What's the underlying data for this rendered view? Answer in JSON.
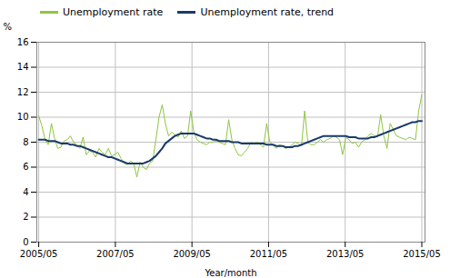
{
  "chart_data": {
    "type": "line",
    "title": "",
    "xlabel": "Year/month",
    "ylabel": "%",
    "x": [
      2005.3333,
      2005.416,
      2005.4986,
      2005.5813,
      2005.6639,
      2005.7466,
      2005.8292,
      2005.9118,
      2005.9945,
      2006.0771,
      2006.1598,
      2006.2424,
      2006.3251,
      2006.4077,
      2006.4904,
      2006.573,
      2006.6556,
      2006.7383,
      2006.8209,
      2006.9036,
      2006.9862,
      2007.0689,
      2007.1515,
      2007.2342,
      2007.3168,
      2007.3994,
      2007.4821,
      2007.5647,
      2007.6474,
      2007.73,
      2007.8127,
      2007.8953,
      2007.978,
      2008.0606,
      2008.1433,
      2008.2259,
      2008.3085,
      2008.3912,
      2008.4738,
      2008.5565,
      2008.6391,
      2008.7218,
      2008.8044,
      2008.8871,
      2008.9697,
      2009.0523,
      2009.135,
      2009.2176,
      2009.3003,
      2009.3829,
      2009.4656,
      2009.5482,
      2009.6309,
      2009.7135,
      2009.7961,
      2009.8788,
      2009.9614,
      2010.0441,
      2010.1267,
      2010.2094,
      2010.292,
      2010.3747,
      2010.4573,
      2010.5399,
      2010.6226,
      2010.7052,
      2010.7879,
      2010.8705,
      2010.9532,
      2011.0358,
      2011.1185,
      2011.2011,
      2011.2837,
      2011.3664,
      2011.449,
      2011.5317,
      2011.6143,
      2011.697,
      2011.7796,
      2011.8623,
      2011.9449,
      2012.0275,
      2012.1102,
      2012.1928,
      2012.2755,
      2012.3581,
      2012.4408,
      2012.5234,
      2012.6061,
      2012.6887,
      2012.7713,
      2012.854,
      2012.9366,
      2013.0193,
      2013.1019,
      2013.1846,
      2013.2672,
      2013.3499,
      2013.4325,
      2013.5152,
      2013.5978,
      2013.6804,
      2013.7631,
      2013.8457,
      2013.9284,
      2014.011,
      2014.0937,
      2014.1763,
      2014.259,
      2014.3416,
      2014.4242,
      2014.5069,
      2014.5895,
      2014.6722,
      2014.7548,
      2014.8375,
      2014.9201,
      2015.0028,
      2015.0854,
      2015.168,
      2015.2507,
      2015.3333
    ],
    "series": [
      {
        "name": "Unemployment rate",
        "color": "#8dc63f",
        "values": [
          10.1,
          9.3,
          8.2,
          7.8,
          9.5,
          8.3,
          7.5,
          7.6,
          8.1,
          8.2,
          8.5,
          8.0,
          7.8,
          7.5,
          8.4,
          7.0,
          7.3,
          7.2,
          6.8,
          7.5,
          7.2,
          7.0,
          7.5,
          6.9,
          7.0,
          7.2,
          6.7,
          6.3,
          6.2,
          6.5,
          6.3,
          5.2,
          6.4,
          6.0,
          5.8,
          6.3,
          6.5,
          8.2,
          10.0,
          11.0,
          9.5,
          8.5,
          8.8,
          8.6,
          8.4,
          8.9,
          8.3,
          8.5,
          10.5,
          8.8,
          8.2,
          8.0,
          7.9,
          7.8,
          8.0,
          8.0,
          8.1,
          8.0,
          7.9,
          7.8,
          9.8,
          8.2,
          7.5,
          7.0,
          6.9,
          7.2,
          7.5,
          8.0,
          7.9,
          8.0,
          7.8,
          7.6,
          9.5,
          8.0,
          7.8,
          7.5,
          7.8,
          7.7,
          7.5,
          7.6,
          7.8,
          8.0,
          7.9,
          7.7,
          10.5,
          8.0,
          7.8,
          7.8,
          8.0,
          8.2,
          8.0,
          8.2,
          8.3,
          8.5,
          8.4,
          8.2,
          7.0,
          8.4,
          8.2,
          7.9,
          8.0,
          7.6,
          8.0,
          8.2,
          8.5,
          8.7,
          8.5,
          8.4,
          10.2,
          8.5,
          7.5,
          9.5,
          9.0,
          8.5,
          8.4,
          8.3,
          8.2,
          8.4,
          8.3,
          8.2,
          10.5,
          11.8
        ]
      },
      {
        "name": "Unemployment rate, trend",
        "color": "#1a3a6b",
        "values": [
          8.2,
          8.2,
          8.2,
          8.1,
          8.1,
          8.1,
          8.0,
          7.9,
          7.9,
          7.9,
          7.8,
          7.8,
          7.7,
          7.7,
          7.6,
          7.5,
          7.4,
          7.3,
          7.2,
          7.1,
          7.0,
          6.9,
          6.8,
          6.8,
          6.7,
          6.6,
          6.5,
          6.4,
          6.3,
          6.3,
          6.3,
          6.3,
          6.3,
          6.3,
          6.4,
          6.5,
          6.7,
          6.9,
          7.2,
          7.5,
          7.9,
          8.1,
          8.3,
          8.5,
          8.6,
          8.7,
          8.7,
          8.7,
          8.7,
          8.7,
          8.6,
          8.5,
          8.4,
          8.3,
          8.3,
          8.2,
          8.2,
          8.1,
          8.1,
          8.1,
          8.1,
          8.0,
          8.0,
          8.0,
          7.9,
          7.9,
          7.9,
          7.9,
          7.9,
          7.9,
          7.9,
          7.9,
          7.8,
          7.8,
          7.8,
          7.7,
          7.7,
          7.7,
          7.6,
          7.6,
          7.6,
          7.7,
          7.7,
          7.8,
          7.9,
          8.0,
          8.1,
          8.2,
          8.3,
          8.4,
          8.5,
          8.5,
          8.5,
          8.5,
          8.5,
          8.5,
          8.5,
          8.5,
          8.4,
          8.4,
          8.4,
          8.3,
          8.3,
          8.3,
          8.3,
          8.4,
          8.4,
          8.5,
          8.6,
          8.7,
          8.8,
          8.9,
          9.0,
          9.1,
          9.2,
          9.3,
          9.4,
          9.5,
          9.6,
          9.6,
          9.7,
          9.7
        ]
      }
    ],
    "xlim": [
      2005.2833,
      2015.4167
    ],
    "xticks": [
      {
        "value": 2005.3333,
        "label": "2005/05"
      },
      {
        "value": 2007.3333,
        "label": "2007/05"
      },
      {
        "value": 2009.3333,
        "label": "2009/05"
      },
      {
        "value": 2011.3333,
        "label": "2011/05"
      },
      {
        "value": 2013.3333,
        "label": "2013/05"
      },
      {
        "value": 2015.3333,
        "label": "2015/05"
      }
    ],
    "ylim": [
      0,
      16
    ],
    "yticks": [
      0,
      2,
      4,
      6,
      8,
      10,
      12,
      14,
      16
    ],
    "grid": true,
    "legend": "top"
  }
}
